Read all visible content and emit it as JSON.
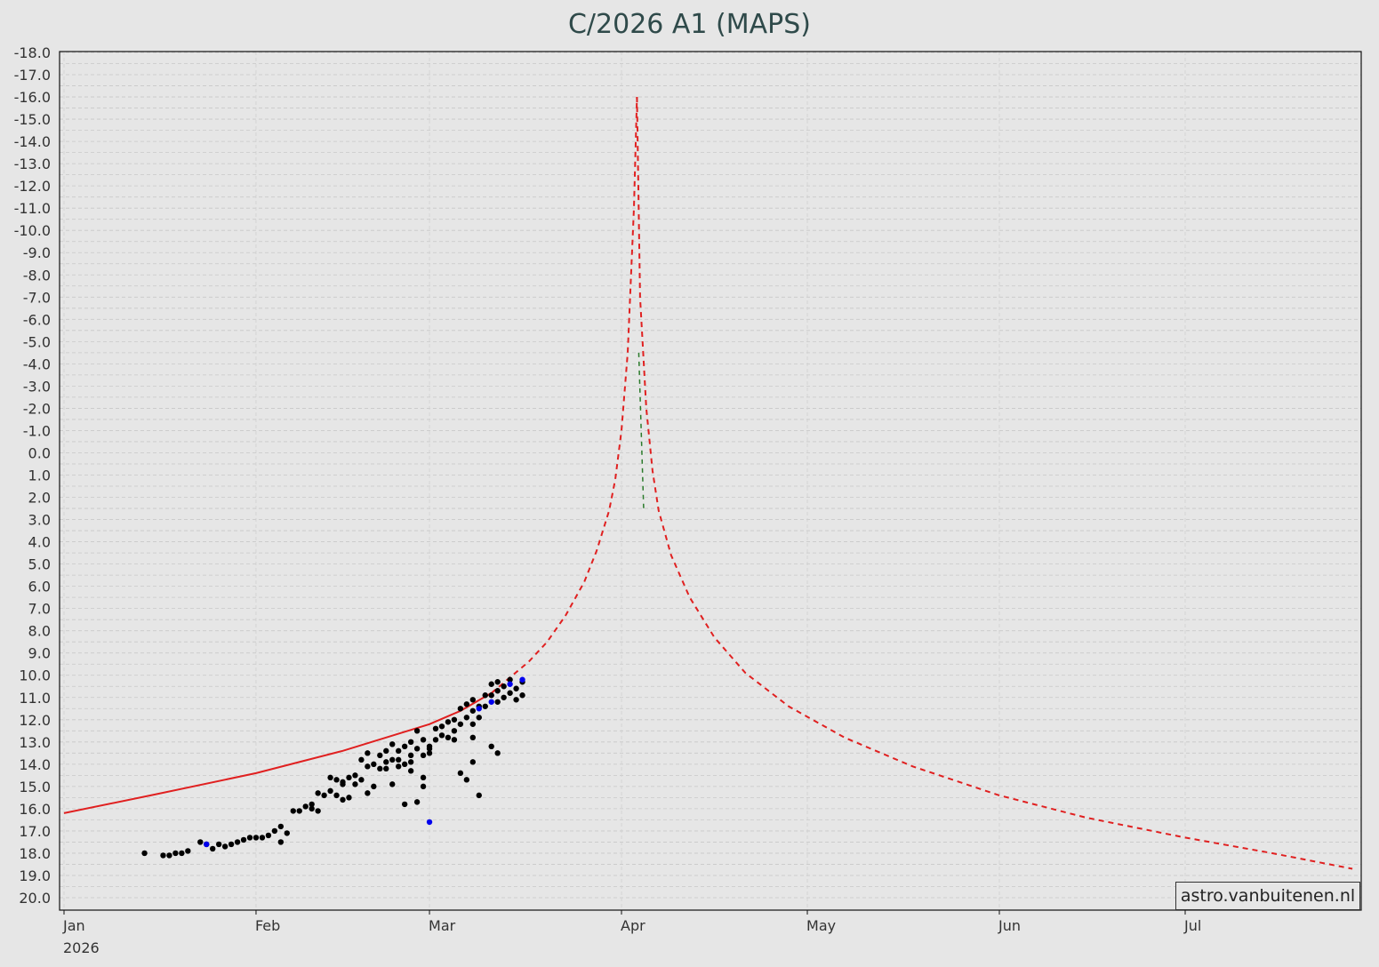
{
  "chart_data": {
    "type": "scatter",
    "title": "C/2026 A1 (MAPS)",
    "xlabel": "",
    "ylabel": "",
    "x_type": "date",
    "xlim": [
      "2026-01-01",
      "2026-07-29"
    ],
    "ylim": [
      -18.0,
      20.0
    ],
    "y_inverted": true,
    "y_ticks": [
      "-18.0",
      "-17.0",
      "-16.0",
      "-15.0",
      "-14.0",
      "-13.0",
      "-12.0",
      "-11.0",
      "-10.0",
      "-9.0",
      "-8.0",
      "-7.0",
      "-6.0",
      "-5.0",
      "-4.0",
      "-3.0",
      "-2.0",
      "-1.0",
      "0.0",
      "1.0",
      "2.0",
      "3.0",
      "4.0",
      "5.0",
      "6.0",
      "7.0",
      "8.0",
      "9.0",
      "10.0",
      "11.0",
      "12.0",
      "13.0",
      "14.0",
      "15.0",
      "16.0",
      "17.0",
      "18.0",
      "19.0",
      "20.0"
    ],
    "x_ticks": [
      {
        "date": "2026-01-01",
        "label": "Jan"
      },
      {
        "date": "2026-02-01",
        "label": "Feb"
      },
      {
        "date": "2026-03-01",
        "label": "Mar"
      },
      {
        "date": "2026-04-01",
        "label": "Apr"
      },
      {
        "date": "2026-05-01",
        "label": "May"
      },
      {
        "date": "2026-06-01",
        "label": "Jun"
      },
      {
        "date": "2026-07-01",
        "label": "Jul"
      }
    ],
    "x_sublabel": "2026",
    "grid": true,
    "watermark": "astro.vanbuitenen.nl",
    "colors": {
      "background": "#e6e6e6",
      "title": "#2f4a4a",
      "model_line": "#e02020",
      "model_green": "#2a7a2a",
      "observation": "#000000",
      "observation_alt": "#0000ee"
    },
    "series": [
      {
        "style": "solid",
        "color": "#e02020",
        "points": [
          [
            "2026-01-01",
            16.2
          ],
          [
            "2026-01-15",
            15.4
          ],
          [
            "2026-02-01",
            14.4
          ],
          [
            "2026-02-15",
            13.4
          ],
          [
            "2026-03-01",
            12.2
          ],
          [
            "2026-03-06",
            11.6
          ],
          [
            "2026-03-11",
            10.8
          ]
        ]
      },
      {
        "style": "dashed",
        "color": "#e02020",
        "points": [
          [
            "2026-03-11",
            10.8
          ],
          [
            "2026-03-14",
            10.1
          ],
          [
            "2026-03-17",
            9.4
          ],
          [
            "2026-03-20",
            8.5
          ],
          [
            "2026-03-23",
            7.3
          ],
          [
            "2026-03-26",
            5.8
          ],
          [
            "2026-03-28",
            4.4
          ],
          [
            "2026-03-30",
            2.6
          ],
          [
            "2026-03-31",
            1.2
          ],
          [
            "2026-04-01",
            -1.0
          ],
          [
            "2026-04-02",
            -4.5
          ],
          [
            "2026-04-03",
            -11.0
          ],
          [
            "2026-04-03.5",
            -16.0
          ]
        ]
      },
      {
        "style": "dashed",
        "color": "#e02020",
        "points": [
          [
            "2026-04-03.5",
            -16.0
          ],
          [
            "2026-04-04",
            -7.0
          ],
          [
            "2026-04-05",
            -2.0
          ],
          [
            "2026-04-06",
            0.8
          ],
          [
            "2026-04-07",
            2.6
          ],
          [
            "2026-04-09",
            4.6
          ],
          [
            "2026-04-12",
            6.5
          ],
          [
            "2026-04-16",
            8.3
          ],
          [
            "2026-04-21",
            9.9
          ],
          [
            "2026-04-28",
            11.4
          ],
          [
            "2026-05-07",
            12.8
          ],
          [
            "2026-05-18",
            14.1
          ],
          [
            "2026-06-01",
            15.4
          ],
          [
            "2026-06-15",
            16.4
          ],
          [
            "2026-07-01",
            17.3
          ],
          [
            "2026-07-15",
            18.0
          ],
          [
            "2026-07-28",
            18.7
          ]
        ]
      }
    ],
    "observations": [
      [
        "2026-01-14",
        18.0
      ],
      [
        "2026-01-17",
        18.1
      ],
      [
        "2026-01-18",
        18.1
      ],
      [
        "2026-01-19",
        18.0
      ],
      [
        "2026-01-20",
        18.0
      ],
      [
        "2026-01-21",
        17.9
      ],
      [
        "2026-01-23",
        17.5
      ],
      [
        "2026-01-24",
        17.6
      ],
      [
        "2026-01-25",
        17.8
      ],
      [
        "2026-01-26",
        17.6
      ],
      [
        "2026-01-27",
        17.7
      ],
      [
        "2026-01-28",
        17.6
      ],
      [
        "2026-01-29",
        17.5
      ],
      [
        "2026-01-30",
        17.4
      ],
      [
        "2026-01-31",
        17.3
      ],
      [
        "2026-02-01",
        17.3
      ],
      [
        "2026-02-02",
        17.3
      ],
      [
        "2026-02-03",
        17.2
      ],
      [
        "2026-02-04",
        17.0
      ],
      [
        "2026-02-05",
        16.8
      ],
      [
        "2026-02-05",
        17.5
      ],
      [
        "2026-02-06",
        17.1
      ],
      [
        "2026-02-07",
        16.1
      ],
      [
        "2026-02-08",
        16.1
      ],
      [
        "2026-02-09",
        15.9
      ],
      [
        "2026-02-10",
        15.8
      ],
      [
        "2026-02-10",
        16.0
      ],
      [
        "2026-02-11",
        16.1
      ],
      [
        "2026-02-11",
        15.3
      ],
      [
        "2026-02-12",
        15.4
      ],
      [
        "2026-02-13",
        15.2
      ],
      [
        "2026-02-13",
        14.6
      ],
      [
        "2026-02-14",
        15.4
      ],
      [
        "2026-02-14",
        14.7
      ],
      [
        "2026-02-15",
        15.6
      ],
      [
        "2026-02-15",
        14.8
      ],
      [
        "2026-02-16",
        14.6
      ],
      [
        "2026-02-16",
        15.5
      ],
      [
        "2026-02-17",
        14.9
      ],
      [
        "2026-02-17",
        14.5
      ],
      [
        "2026-02-18",
        13.8
      ],
      [
        "2026-02-18",
        14.7
      ],
      [
        "2026-02-19",
        13.5
      ],
      [
        "2026-02-19",
        15.3
      ],
      [
        "2026-02-20",
        14.0
      ],
      [
        "2026-02-20",
        15.0
      ],
      [
        "2026-02-21",
        14.2
      ],
      [
        "2026-02-21",
        13.6
      ],
      [
        "2026-02-22",
        13.9
      ],
      [
        "2026-02-22",
        14.2
      ],
      [
        "2026-02-23",
        13.1
      ],
      [
        "2026-02-23",
        14.9
      ],
      [
        "2026-02-24",
        13.8
      ],
      [
        "2026-02-24",
        13.4
      ],
      [
        "2026-02-25",
        14.0
      ],
      [
        "2026-02-25",
        15.8
      ],
      [
        "2026-02-26",
        13.6
      ],
      [
        "2026-02-26",
        13.9
      ],
      [
        "2026-02-27",
        15.7
      ],
      [
        "2026-02-27",
        13.3
      ],
      [
        "2026-02-28",
        14.6
      ],
      [
        "2026-02-28",
        15.0
      ],
      [
        "2026-03-01",
        13.2
      ],
      [
        "2026-03-01",
        13.5
      ],
      [
        "2026-02-22",
        13.4
      ],
      [
        "2026-02-23",
        13.8
      ],
      [
        "2026-02-24",
        14.1
      ],
      [
        "2026-02-25",
        13.2
      ],
      [
        "2026-02-26",
        14.3
      ],
      [
        "2026-02-27",
        12.5
      ],
      [
        "2026-02-28",
        12.9
      ],
      [
        "2026-02-28",
        13.6
      ],
      [
        "2026-03-01",
        13.3
      ],
      [
        "2026-03-02",
        12.4
      ],
      [
        "2026-03-02",
        12.9
      ],
      [
        "2026-03-03",
        12.3
      ],
      [
        "2026-03-03",
        12.7
      ],
      [
        "2026-03-04",
        12.1
      ],
      [
        "2026-03-04",
        12.8
      ],
      [
        "2026-03-05",
        12.0
      ],
      [
        "2026-03-05",
        12.5
      ],
      [
        "2026-03-06",
        11.5
      ],
      [
        "2026-03-06",
        12.2
      ],
      [
        "2026-03-07",
        11.3
      ],
      [
        "2026-03-07",
        11.9
      ],
      [
        "2026-03-08",
        11.1
      ],
      [
        "2026-03-08",
        11.6
      ],
      [
        "2026-03-08",
        12.2
      ],
      [
        "2026-03-09",
        11.4
      ],
      [
        "2026-03-09",
        11.9
      ],
      [
        "2026-03-10",
        10.9
      ],
      [
        "2026-03-10",
        11.4
      ],
      [
        "2026-03-11",
        10.4
      ],
      [
        "2026-03-11",
        10.9
      ],
      [
        "2026-03-12",
        10.3
      ],
      [
        "2026-03-12",
        10.7
      ],
      [
        "2026-03-12",
        11.2
      ],
      [
        "2026-03-13",
        10.5
      ],
      [
        "2026-03-13",
        11.0
      ],
      [
        "2026-03-14",
        10.2
      ],
      [
        "2026-03-14",
        10.8
      ],
      [
        "2026-03-15",
        10.6
      ],
      [
        "2026-03-15",
        11.1
      ],
      [
        "2026-03-16",
        10.3
      ],
      [
        "2026-03-16",
        10.9
      ],
      [
        "2026-03-05",
        12.9
      ],
      [
        "2026-03-06",
        14.4
      ],
      [
        "2026-03-07",
        14.7
      ],
      [
        "2026-03-08",
        12.8
      ],
      [
        "2026-03-08",
        13.9
      ],
      [
        "2026-03-09",
        15.4
      ],
      [
        "2026-03-11",
        13.2
      ],
      [
        "2026-03-12",
        13.5
      ],
      [
        "2026-02-15",
        14.9
      ],
      [
        "2026-02-19",
        14.1
      ],
      [
        "2026-02-26",
        13.0
      ]
    ],
    "observations_alt": [
      [
        "2026-01-24",
        17.6
      ],
      [
        "2026-02-29",
        16.6
      ],
      [
        "2026-03-09",
        11.5
      ],
      [
        "2026-03-11",
        11.2
      ],
      [
        "2026-03-14",
        10.4
      ],
      [
        "2026-03-16",
        10.2
      ]
    ]
  }
}
